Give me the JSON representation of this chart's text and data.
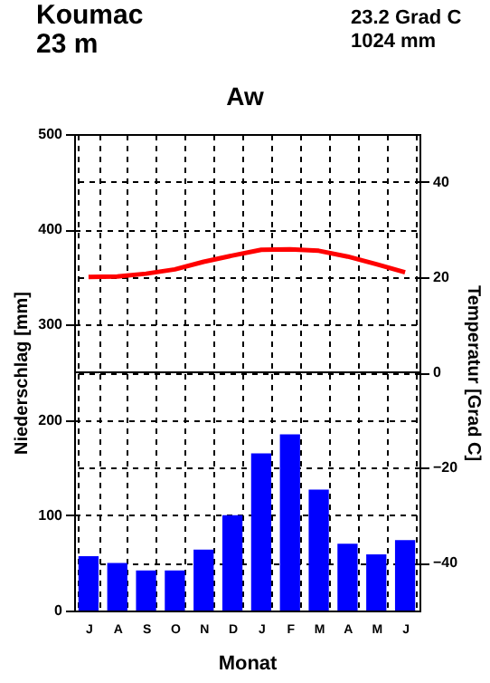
{
  "chart_data": {
    "type": "bar",
    "title": "Koumac",
    "subtitle": "23 m",
    "annotations": [
      "23.2 Grad C",
      "1024 mm",
      "Aw"
    ],
    "xlabel": "Monat",
    "ylabel": "Niederschlag [mm]",
    "y2label": "Temperatur [Grad C]",
    "categories": [
      "J",
      "A",
      "S",
      "O",
      "N",
      "D",
      "J",
      "F",
      "M",
      "A",
      "M",
      "J"
    ],
    "series": [
      {
        "color": "#0000ff",
        "values": [
          57,
          50,
          42,
          42,
          64,
          100,
          165,
          185,
          127,
          70,
          59,
          74
        ]
      },
      {
        "type": "line",
        "axis": "y2",
        "color": "#ff0000",
        "values": [
          20.0,
          20.1,
          20.7,
          21.6,
          23.2,
          24.5,
          25.7,
          25.8,
          25.5,
          24.3,
          22.7,
          21.0
        ]
      }
    ],
    "ylim": [
      0,
      500
    ],
    "yticks": [
      0,
      100,
      200,
      300,
      400,
      500
    ],
    "y2lim": [
      -50,
      50
    ],
    "y2ticks": [
      -40,
      -20,
      0,
      20,
      40
    ],
    "ref_lines": [
      {
        "axis": "y2",
        "value": 0
      }
    ],
    "grid": true
  }
}
